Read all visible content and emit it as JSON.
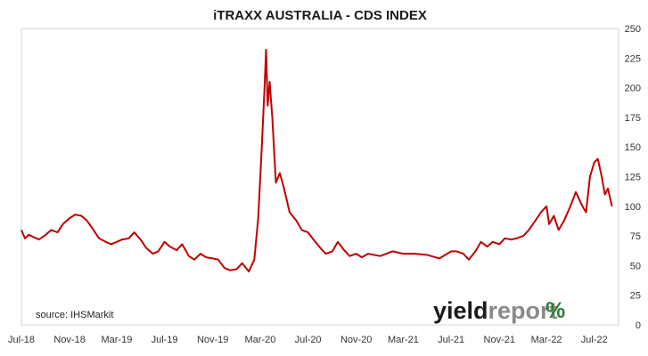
{
  "chart_data": {
    "type": "line",
    "title": "iTRAXX AUSTRALIA - CDS INDEX",
    "xlabel": "",
    "ylabel": "",
    "x_ticks": [
      "Jul-18",
      "Nov-18",
      "Mar-19",
      "Jul-19",
      "Nov-19",
      "Mar-20",
      "Jul-20",
      "Nov-20",
      "Mar-21",
      "Jul-21",
      "Nov-21",
      "Mar-22",
      "Jul-22"
    ],
    "y_ticks": [
      0,
      25,
      50,
      75,
      100,
      125,
      150,
      175,
      200,
      225,
      250
    ],
    "ylim": [
      0,
      250
    ],
    "xlim": [
      "2018-07-01",
      "2022-09-01"
    ],
    "y_axis_side": "right",
    "grid": false,
    "legend": "none",
    "line_color": "#c00000",
    "series": [
      {
        "points": [
          [
            "2018-07-01",
            80
          ],
          [
            "2018-07-10",
            73
          ],
          [
            "2018-07-20",
            76
          ],
          [
            "2018-08-01",
            74
          ],
          [
            "2018-08-15",
            72
          ],
          [
            "2018-09-01",
            76
          ],
          [
            "2018-09-15",
            80
          ],
          [
            "2018-10-01",
            78
          ],
          [
            "2018-10-15",
            85
          ],
          [
            "2018-11-01",
            90
          ],
          [
            "2018-11-15",
            93
          ],
          [
            "2018-12-01",
            92
          ],
          [
            "2018-12-15",
            88
          ],
          [
            "2019-01-01",
            80
          ],
          [
            "2019-01-15",
            73
          ],
          [
            "2019-02-01",
            70
          ],
          [
            "2019-02-15",
            68
          ],
          [
            "2019-03-01",
            70
          ],
          [
            "2019-03-15",
            72
          ],
          [
            "2019-04-01",
            73
          ],
          [
            "2019-04-15",
            78
          ],
          [
            "2019-05-01",
            72
          ],
          [
            "2019-05-15",
            65
          ],
          [
            "2019-06-01",
            60
          ],
          [
            "2019-06-15",
            62
          ],
          [
            "2019-07-01",
            70
          ],
          [
            "2019-07-15",
            66
          ],
          [
            "2019-08-01",
            63
          ],
          [
            "2019-08-15",
            68
          ],
          [
            "2019-09-01",
            58
          ],
          [
            "2019-09-15",
            55
          ],
          [
            "2019-10-01",
            60
          ],
          [
            "2019-10-15",
            57
          ],
          [
            "2019-11-01",
            56
          ],
          [
            "2019-11-15",
            55
          ],
          [
            "2019-12-01",
            48
          ],
          [
            "2019-12-15",
            46
          ],
          [
            "2020-01-01",
            47
          ],
          [
            "2020-01-15",
            52
          ],
          [
            "2020-02-01",
            45
          ],
          [
            "2020-02-15",
            55
          ],
          [
            "2020-02-25",
            90
          ],
          [
            "2020-03-05",
            150
          ],
          [
            "2020-03-12",
            200
          ],
          [
            "2020-03-16",
            232
          ],
          [
            "2020-03-20",
            185
          ],
          [
            "2020-03-25",
            205
          ],
          [
            "2020-04-01",
            175
          ],
          [
            "2020-04-10",
            120
          ],
          [
            "2020-04-20",
            128
          ],
          [
            "2020-05-01",
            115
          ],
          [
            "2020-05-15",
            95
          ],
          [
            "2020-06-01",
            88
          ],
          [
            "2020-06-15",
            80
          ],
          [
            "2020-07-01",
            78
          ],
          [
            "2020-07-15",
            72
          ],
          [
            "2020-08-01",
            65
          ],
          [
            "2020-08-15",
            60
          ],
          [
            "2020-09-01",
            62
          ],
          [
            "2020-09-15",
            70
          ],
          [
            "2020-10-01",
            63
          ],
          [
            "2020-10-15",
            58
          ],
          [
            "2020-11-01",
            60
          ],
          [
            "2020-11-15",
            57
          ],
          [
            "2020-12-01",
            60
          ],
          [
            "2021-01-01",
            58
          ],
          [
            "2021-02-01",
            62
          ],
          [
            "2021-03-01",
            60
          ],
          [
            "2021-04-01",
            60
          ],
          [
            "2021-05-01",
            59
          ],
          [
            "2021-06-01",
            56
          ],
          [
            "2021-07-01",
            62
          ],
          [
            "2021-07-15",
            62
          ],
          [
            "2021-08-01",
            60
          ],
          [
            "2021-08-15",
            55
          ],
          [
            "2021-09-01",
            62
          ],
          [
            "2021-09-15",
            70
          ],
          [
            "2021-10-01",
            66
          ],
          [
            "2021-10-15",
            70
          ],
          [
            "2021-11-01",
            68
          ],
          [
            "2021-11-15",
            73
          ],
          [
            "2021-12-01",
            72
          ],
          [
            "2021-12-15",
            73
          ],
          [
            "2022-01-01",
            75
          ],
          [
            "2022-01-15",
            80
          ],
          [
            "2022-02-01",
            88
          ],
          [
            "2022-02-15",
            95
          ],
          [
            "2022-03-01",
            100
          ],
          [
            "2022-03-08",
            85
          ],
          [
            "2022-03-20",
            92
          ],
          [
            "2022-04-01",
            80
          ],
          [
            "2022-04-15",
            88
          ],
          [
            "2022-05-01",
            100
          ],
          [
            "2022-05-15",
            112
          ],
          [
            "2022-06-01",
            100
          ],
          [
            "2022-06-10",
            95
          ],
          [
            "2022-06-20",
            125
          ],
          [
            "2022-07-01",
            137
          ],
          [
            "2022-07-10",
            140
          ],
          [
            "2022-07-20",
            125
          ],
          [
            "2022-07-28",
            110
          ],
          [
            "2022-08-05",
            115
          ],
          [
            "2022-08-15",
            100
          ]
        ]
      }
    ]
  },
  "source_note": "source: IHSMarkit",
  "logo": {
    "part1": "yield",
    "part2": "report",
    "symbol": "%"
  }
}
